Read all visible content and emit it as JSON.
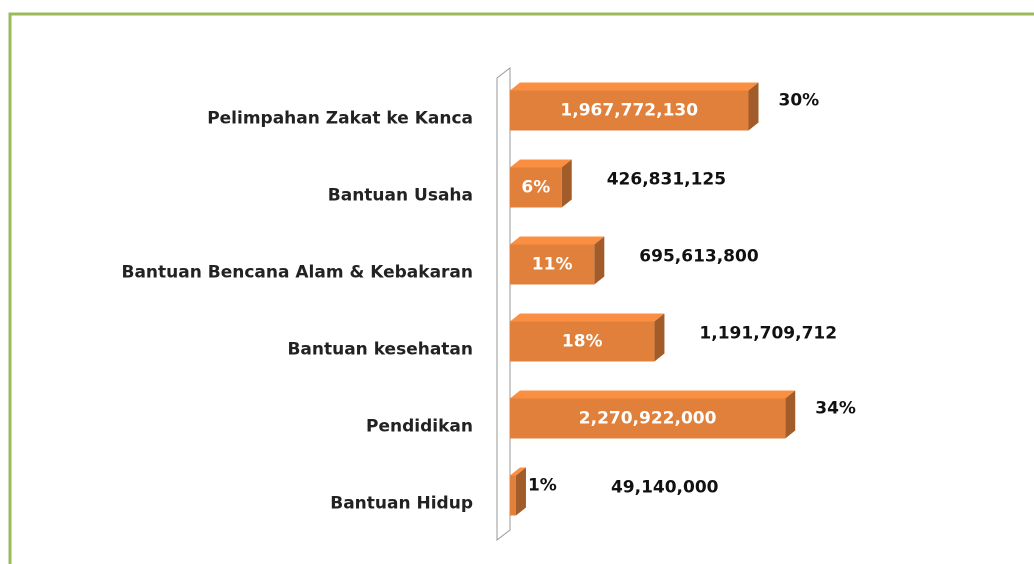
{
  "chart_data": {
    "type": "bar3d",
    "orientation": "horizontal",
    "categories": [
      "Pelimpahan Zakat ke Kanca",
      "Bantuan Usaha",
      "Bantuan Bencana Alam & Kebakaran",
      "Bantuan kesehatan",
      "Pendidikan",
      "Bantuan Hidup"
    ],
    "values": [
      1967772130,
      426831125,
      695613800,
      1191709712,
      2270922000,
      49140000
    ],
    "value_labels": [
      "1,967,772,130",
      "426,831,125",
      "695,613,800",
      "1,191,709,712",
      "2,270,922,000",
      "49,140,000"
    ],
    "share_labels": [
      "30%",
      "6%",
      "11%",
      "18%",
      "34%",
      "1%"
    ],
    "color": "#e0803a",
    "xlim": [
      0,
      2500000000
    ]
  }
}
